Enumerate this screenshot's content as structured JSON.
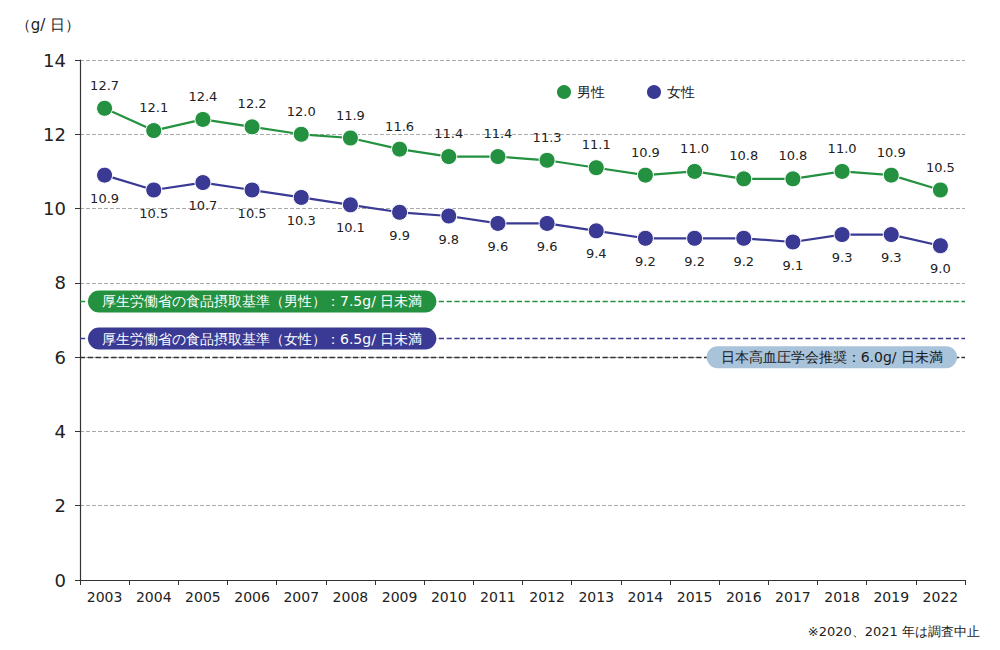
{
  "chart_data": {
    "type": "line",
    "y_label": "（g/ 日）",
    "footnote": "※2020、2021 年は調査中止",
    "categories": [
      "2003",
      "2004",
      "2005",
      "2006",
      "2007",
      "2008",
      "2009",
      "2010",
      "2011",
      "2012",
      "2013",
      "2014",
      "2015",
      "2016",
      "2017",
      "2018",
      "2019",
      "2022"
    ],
    "series": [
      {
        "name": "男性",
        "color": "#23913f",
        "values": [
          12.7,
          12.1,
          12.4,
          12.2,
          12.0,
          11.9,
          11.6,
          11.4,
          11.4,
          11.3,
          11.1,
          10.9,
          11.0,
          10.8,
          10.8,
          11.0,
          10.9,
          10.5
        ],
        "value_labels": [
          "12.7",
          "12.1",
          "12.4",
          "12.2",
          "12.0",
          "11.9",
          "11.6",
          "11.4",
          "11.4",
          "11.3",
          "11.1",
          "10.9",
          "11.0",
          "10.8",
          "10.8",
          "11.0",
          "10.9",
          "10.5"
        ]
      },
      {
        "name": "女性",
        "color": "#3a3a94",
        "values": [
          10.9,
          10.5,
          10.7,
          10.5,
          10.3,
          10.1,
          9.9,
          9.8,
          9.6,
          9.6,
          9.4,
          9.2,
          9.2,
          9.2,
          9.1,
          9.3,
          9.3,
          9.0
        ],
        "value_labels": [
          "10.9",
          "10.5",
          "10.7",
          "10.5",
          "10.3",
          "10.1",
          "9.9",
          "9.8",
          "9.6",
          "9.6",
          "9.4",
          "9.2",
          "9.2",
          "9.2",
          "9.1",
          "9.3",
          "9.3",
          "9.0"
        ]
      }
    ],
    "annotations": [
      {
        "label": "厚生労働省の食品摂取基準（男性）：7.5g/ 日未満",
        "value": 7.5,
        "color": "#23913f"
      },
      {
        "label": "厚生労働省の食品摂取基準（女性）：6.5g/ 日未満",
        "value": 6.5,
        "color": "#3a3a94"
      },
      {
        "label": "日本高血圧学会推奨：6.0g/ 日未満",
        "value": 6.0,
        "color": "#a9c3da"
      }
    ],
    "ylim": [
      0,
      14
    ],
    "yticks": [
      0,
      2,
      4,
      6,
      8,
      10,
      12,
      14
    ],
    "grid": true,
    "legend": "upper right",
    "data_labels": true,
    "marker": "circle",
    "line_style": "solid"
  }
}
